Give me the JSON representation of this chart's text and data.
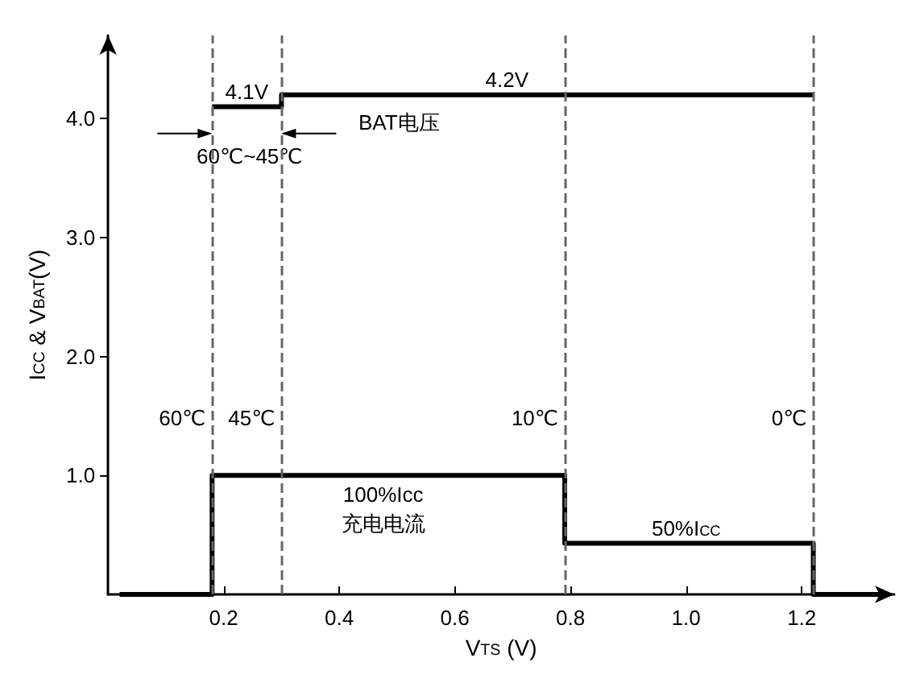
{
  "chart_data": {
    "type": "step",
    "xlabel": "V$_{TS}$ (V)",
    "ylabel": "I$_{CC}$ & V$_{BAT}$(V)",
    "xlim": [
      0,
      1.36
    ],
    "xticks": [
      0.2,
      0.4,
      0.6,
      0.8,
      {
        "value": 1,
        "label": "1.0"
      },
      1.2
    ],
    "ylim": [
      0,
      4.7
    ],
    "yticks": [
      {
        "value": 1,
        "label": "1.0"
      },
      {
        "value": 2,
        "label": "2.0"
      },
      {
        "value": 3,
        "label": "3.0"
      },
      {
        "value": 4,
        "label": "4.0"
      }
    ],
    "grid": false,
    "marker": "none",
    "line_style": "solid",
    "series": [
      {
        "color": "#000000",
        "x": [
          0.18,
          0.3,
          1.22
        ],
        "values": [
          4.1,
          4.2,
          4.2
        ]
      },
      {
        "color": "#000000",
        "x": [
          0.02,
          0.18,
          0.79,
          1.22,
          1.35
        ],
        "values": [
          0,
          1,
          0.43,
          0,
          0
        ]
      }
    ],
    "ref_lines": [
      {
        "axis": "x",
        "value": 0.18,
        "label": "60℃",
        "color": "#666666",
        "line_style": "dashed"
      },
      {
        "axis": "x",
        "value": 0.3,
        "label": "45℃",
        "color": "#666666",
        "line_style": "dashed"
      },
      {
        "axis": "x",
        "value": 0.79,
        "label": "10℃",
        "color": "#666666",
        "line_style": "dashed"
      },
      {
        "axis": "x",
        "value": 1.22,
        "label": "0℃",
        "color": "#666666",
        "line_style": "dashed"
      }
    ],
    "annotations": [
      {
        "text": "4.1V",
        "x": 0.24,
        "y": 4.1
      },
      {
        "text": "4.2V",
        "x": 0.69,
        "y": 4.2
      },
      "BAT电压",
      "60℃~45℃",
      "100%Icc\n充电电流",
      {
        "text": "50%I$_{CC}$",
        "x": 1.0,
        "y": 0.43
      }
    ]
  }
}
